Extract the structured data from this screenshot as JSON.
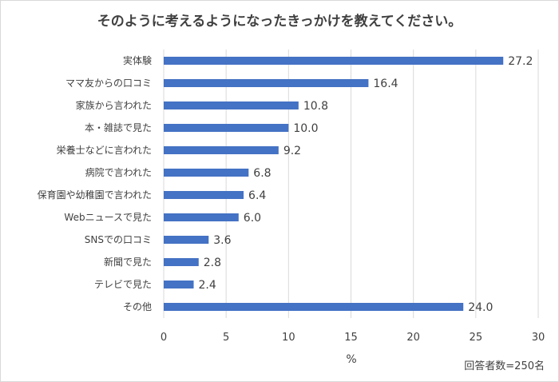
{
  "chart_data": {
    "type": "bar",
    "orientation": "horizontal",
    "title": "そのように考えるようになったきっかけを教えてください。",
    "xlabel": "%",
    "note": "回答者数=250名",
    "categories": [
      "実体験",
      "ママ友からの口コミ",
      "家族から言われた",
      "本・雑誌で見た",
      "栄養士などに言われた",
      "病院で言われた",
      "保育園や幼稚園で言われた",
      "Webニュースで見た",
      "SNSでの口コミ",
      "新聞で見た",
      "テレビで見た",
      "その他"
    ],
    "value_labels": [
      "27.2",
      "16.4",
      "10.8",
      "10.0",
      "9.2",
      "6.8",
      "6.4",
      "6.0",
      "3.6",
      "2.8",
      "2.4",
      "24.0"
    ],
    "values": [
      27.2,
      16.4,
      10.8,
      10.0,
      9.2,
      6.8,
      6.4,
      6.0,
      3.6,
      2.8,
      2.4,
      24.0
    ],
    "xlim": [
      0,
      30
    ],
    "xticks": [
      "0",
      "5",
      "10",
      "15",
      "20",
      "25",
      "30"
    ],
    "grid": "vertical",
    "bar_color": "#4472c4"
  }
}
